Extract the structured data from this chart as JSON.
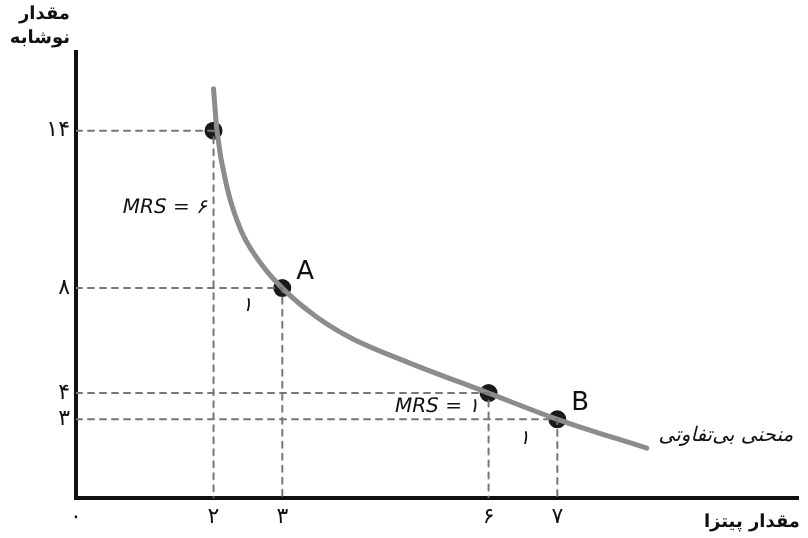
{
  "chart_data": {
    "type": "line",
    "xlabel": "مقدار پیتزا",
    "ylabel": "مقدار نوشابه",
    "xlim": [
      0,
      10.5
    ],
    "ylim": [
      0,
      17
    ],
    "xticks": [
      {
        "value": 0,
        "label": "۰"
      },
      {
        "value": 2,
        "label": "۲"
      },
      {
        "value": 3,
        "label": "۳"
      },
      {
        "value": 6,
        "label": "۶"
      },
      {
        "value": 7,
        "label": "۷"
      }
    ],
    "yticks": [
      {
        "value": 3,
        "label": "۳"
      },
      {
        "value": 4,
        "label": "۴"
      },
      {
        "value": 8,
        "label": "۸"
      },
      {
        "value": 14,
        "label": "۱۴"
      }
    ],
    "legend": false,
    "series": [
      {
        "color": "#777777",
        "line_style": "dashed",
        "marker": "none",
        "x": [
          0,
          2,
          2,
          null,
          0,
          3,
          3,
          null,
          0,
          6,
          6,
          null,
          0,
          7,
          7
        ],
        "values": [
          14,
          14,
          0,
          null,
          8,
          8,
          0,
          null,
          4,
          4,
          0,
          null,
          3,
          3,
          0
        ]
      },
      {
        "color": "#8c8c8c",
        "line_style": "solid",
        "marker": "none",
        "x": [
          2,
          2.05,
          2.2,
          2.4,
          2.7,
          3,
          3.5,
          4,
          4.8,
          6,
          7,
          8.3
        ],
        "values": [
          15.6,
          14,
          11.8,
          10.2,
          8.9,
          8,
          6.9,
          6.1,
          5.2,
          4,
          3,
          1.9
        ]
      },
      {
        "type": "scatter",
        "color": "#1a1a1a",
        "marker": "circle",
        "x": [
          2,
          3,
          6,
          7
        ],
        "values": [
          14,
          8,
          4,
          3
        ]
      }
    ],
    "annotations": [
      {
        "text": "A",
        "x": 3,
        "y": 8
      },
      {
        "text": "B",
        "x": 7,
        "y": 3
      },
      "MRS = ۶",
      "MRS = ۱",
      "۱",
      "۱",
      "منحنی بی‌تفاوتی"
    ]
  }
}
